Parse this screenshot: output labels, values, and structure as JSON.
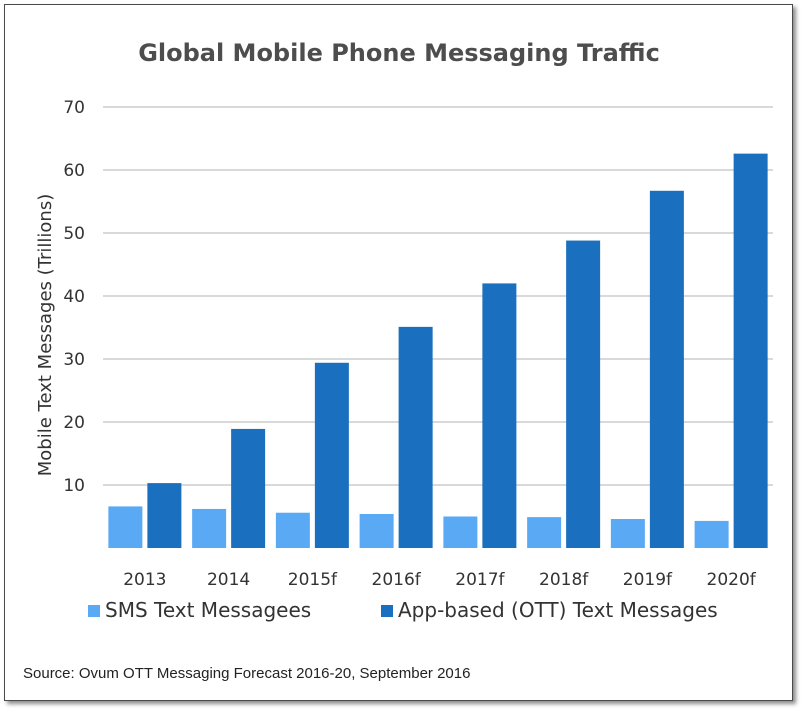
{
  "chart_data": {
    "type": "bar",
    "title": "Global Mobile Phone Messaging Traffic",
    "ylabel": "Mobile Text Messages (Trillions)",
    "xlabel": "",
    "categories": [
      "2013",
      "2014",
      "2015f",
      "2016f",
      "2017f",
      "2018f",
      "2019f",
      "2020f"
    ],
    "series": [
      {
        "name": "SMS Text Messagees",
        "color": "#5aa9f5",
        "values": [
          6.6,
          6.2,
          5.6,
          5.4,
          5.0,
          4.9,
          4.6,
          4.3
        ]
      },
      {
        "name": "App-based (OTT) Text Messages",
        "color": "#1a70bf",
        "values": [
          10.3,
          18.9,
          29.4,
          35.1,
          42.0,
          48.8,
          56.7,
          62.6
        ]
      }
    ],
    "ylim": [
      0,
      70
    ],
    "yticks": [
      "10",
      "20",
      "30",
      "40",
      "50",
      "60",
      "70"
    ],
    "grid": true,
    "legend_position": "bottom"
  },
  "source_note": "Source: Ovum OTT Messaging Forecast 2016-20, September 2016"
}
